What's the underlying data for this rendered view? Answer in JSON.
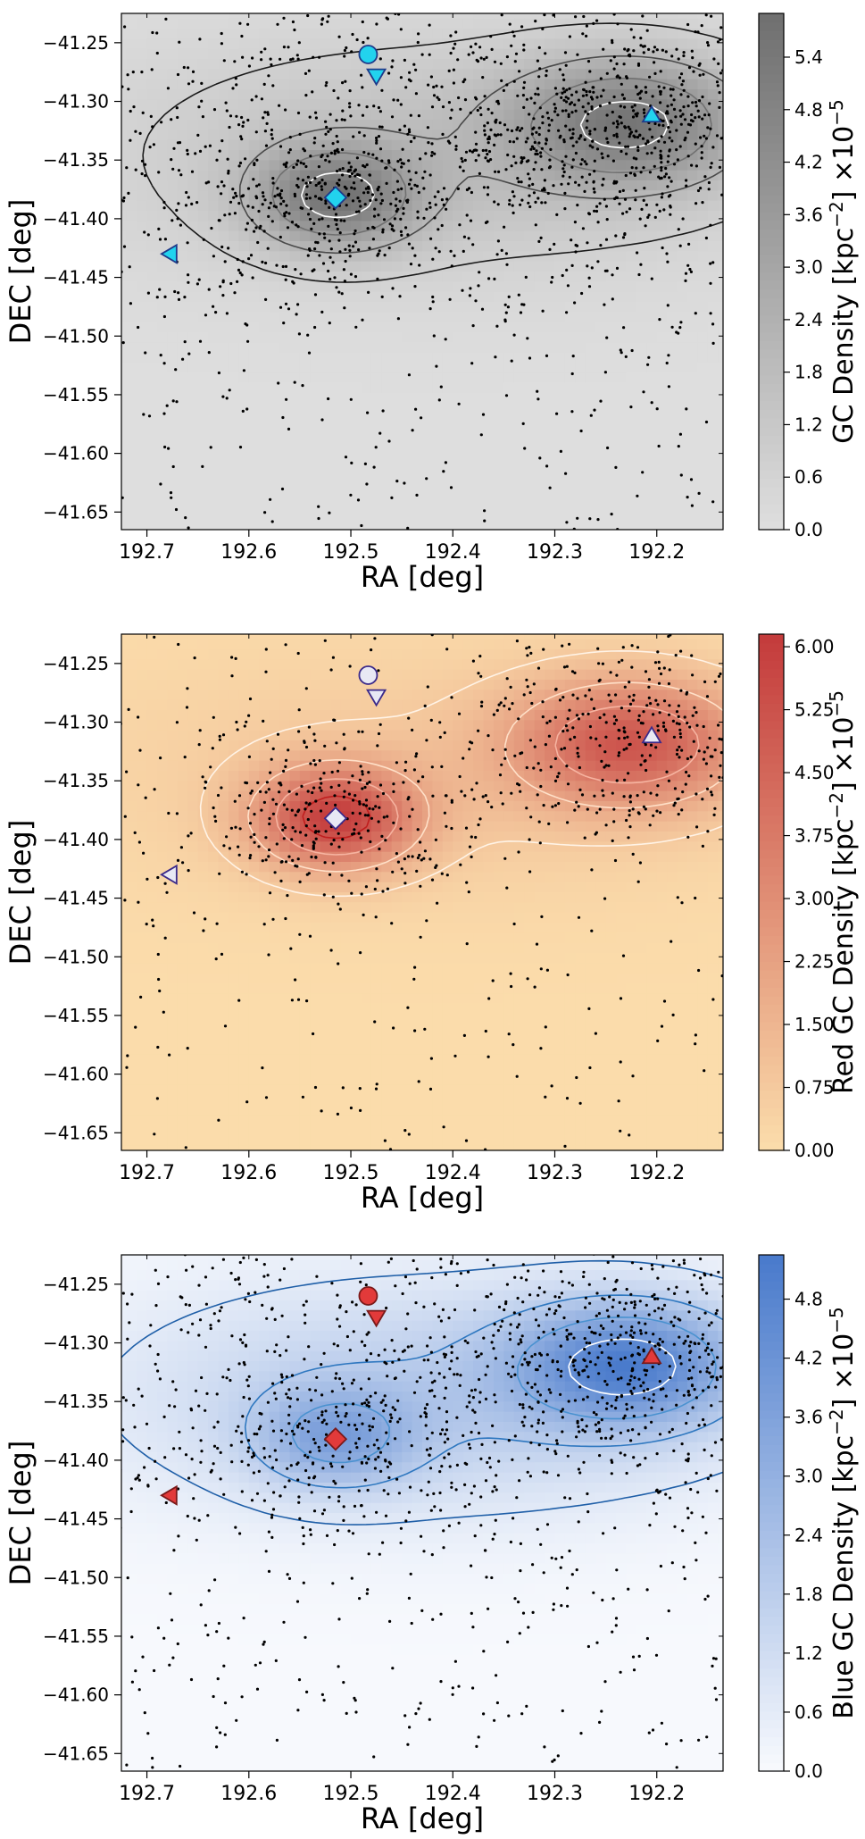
{
  "chart_data": [
    {
      "type": "scatter",
      "id": "all",
      "xlabel": "RA [deg]",
      "ylabel": "DEC [deg]",
      "colorbar_label": "GC Density [kpc$^{-2}$] ×10$^{-5}$",
      "colorbar_label_parts": [
        "GC Density [kpc",
        "−2",
        "] ×10",
        "−5"
      ],
      "xlim": [
        192.725,
        192.135
      ],
      "ylim": [
        -41.665,
        -41.225
      ],
      "xticks": [
        192.7,
        192.6,
        192.5,
        192.4,
        192.3,
        192.2
      ],
      "xtick_labels": [
        "192.7",
        "192.6",
        "192.5",
        "192.4",
        "192.3",
        "192.2"
      ],
      "yticks": [
        -41.25,
        -41.3,
        -41.35,
        -41.4,
        -41.45,
        -41.5,
        -41.55,
        -41.6,
        -41.65
      ],
      "ytick_labels": [
        "−41.25",
        "−41.30",
        "−41.35",
        "−41.40",
        "−41.45",
        "−41.50",
        "−41.55",
        "−41.60",
        "−41.65"
      ],
      "cbar_range": [
        0,
        5.9
      ],
      "cbar_ticks": [
        0.0,
        0.6,
        1.2,
        1.8,
        2.4,
        3.0,
        3.6,
        4.2,
        4.8,
        5.4
      ],
      "cbar_tick_labels": [
        "0.0",
        "0.6",
        "1.2",
        "1.8",
        "2.4",
        "3.0",
        "3.6",
        "4.2",
        "4.8",
        "5.4"
      ],
      "colormap": [
        "#dedede",
        "#707070"
      ],
      "contour_color": "#404040",
      "n_points": 2000,
      "marker_fill": "#22d3ee",
      "marker_edge": "#1e3a8a"
    },
    {
      "type": "scatter",
      "id": "red",
      "xlabel": "RA [deg]",
      "ylabel": "DEC [deg]",
      "colorbar_label": "Red GC Density [kpc$^{-2}$] ×10$^{-5}$",
      "colorbar_label_parts": [
        "Red GC Density [kpc",
        "−2",
        "] ×10",
        "−5"
      ],
      "xlim": [
        192.725,
        192.135
      ],
      "ylim": [
        -41.665,
        -41.225
      ],
      "xticks": [
        192.7,
        192.6,
        192.5,
        192.4,
        192.3,
        192.2
      ],
      "xtick_labels": [
        "192.7",
        "192.6",
        "192.5",
        "192.4",
        "192.3",
        "192.2"
      ],
      "yticks": [
        -41.25,
        -41.3,
        -41.35,
        -41.4,
        -41.45,
        -41.5,
        -41.55,
        -41.6,
        -41.65
      ],
      "ytick_labels": [
        "−41.25",
        "−41.30",
        "−41.35",
        "−41.40",
        "−41.45",
        "−41.50",
        "−41.55",
        "−41.60",
        "−41.65"
      ],
      "cbar_range": [
        0,
        6.15
      ],
      "cbar_ticks": [
        0.0,
        0.75,
        1.5,
        2.25,
        3.0,
        3.75,
        4.5,
        5.25,
        6.0
      ],
      "cbar_tick_labels": [
        "0.00",
        "0.75",
        "1.50",
        "2.25",
        "3.00",
        "3.75",
        "4.50",
        "5.25",
        "6.00"
      ],
      "colormap": [
        "#fbdcab",
        "#c43c3c"
      ],
      "contour_color": "#ffe9d0",
      "n_points": 1000,
      "marker_fill": "#e8e8f4",
      "marker_edge": "#3b2a8a"
    },
    {
      "type": "scatter",
      "id": "blue",
      "xlabel": "RA [deg]",
      "ylabel": "DEC [deg]",
      "colorbar_label": "Blue GC Density [kpc$^{-2}$] ×10$^{-5}$",
      "colorbar_label_parts": [
        "Blue GC Density [kpc",
        "−2",
        "] ×10",
        "−5"
      ],
      "xlim": [
        192.725,
        192.135
      ],
      "ylim": [
        -41.665,
        -41.225
      ],
      "xticks": [
        192.7,
        192.6,
        192.5,
        192.4,
        192.3,
        192.2
      ],
      "xtick_labels": [
        "192.7",
        "192.6",
        "192.5",
        "192.4",
        "192.3",
        "192.2"
      ],
      "yticks": [
        -41.25,
        -41.3,
        -41.35,
        -41.4,
        -41.45,
        -41.5,
        -41.55,
        -41.6,
        -41.65
      ],
      "ytick_labels": [
        "−41.25",
        "−41.30",
        "−41.35",
        "−41.40",
        "−41.45",
        "−41.50",
        "−41.55",
        "−41.60",
        "−41.65"
      ],
      "cbar_range": [
        0,
        5.25
      ],
      "cbar_ticks": [
        0.0,
        0.6,
        1.2,
        1.8,
        2.4,
        3.0,
        3.6,
        4.2,
        4.8
      ],
      "cbar_tick_labels": [
        "0.0",
        "0.6",
        "1.2",
        "1.8",
        "2.4",
        "3.0",
        "3.6",
        "4.2",
        "4.8"
      ],
      "colormap": [
        "#f7f9fd",
        "#4a7bcc"
      ],
      "contour_color": "#1f5fa8",
      "n_points": 1600,
      "marker_fill": "#e23a3a",
      "marker_edge": "#7a1a1a"
    }
  ],
  "density_model": {
    "components": [
      {
        "ra": 192.515,
        "dec": -41.382,
        "sigma_ra": 0.055,
        "sigma_dec": 0.03,
        "amp": [
          1.0,
          1.0,
          0.6
        ]
      },
      {
        "ra": 192.225,
        "dec": -41.318,
        "sigma_ra": 0.08,
        "sigma_dec": 0.038,
        "amp": [
          1.0,
          0.85,
          1.0
        ]
      },
      {
        "ra": 192.42,
        "dec": -41.345,
        "sigma_ra": 0.22,
        "sigma_dec": 0.07,
        "amp": [
          0.35,
          0.15,
          0.45
        ]
      }
    ],
    "contour_levels": [
      0.12,
      0.35,
      0.6,
      0.85
    ]
  },
  "markers": [
    {
      "name": "circle-marker",
      "shape": "circle",
      "ra": 192.483,
      "dec": -41.26
    },
    {
      "name": "down-triangle-marker",
      "shape": "triangle-down",
      "ra": 192.475,
      "dec": -41.278
    },
    {
      "name": "diamond-marker",
      "shape": "diamond",
      "ra": 192.515,
      "dec": -41.382
    },
    {
      "name": "up-triangle-marker",
      "shape": "triangle-up",
      "ra": 192.205,
      "dec": -41.312
    },
    {
      "name": "left-triangle-marker",
      "shape": "triangle-left",
      "ra": 192.677,
      "dec": -41.43
    }
  ]
}
